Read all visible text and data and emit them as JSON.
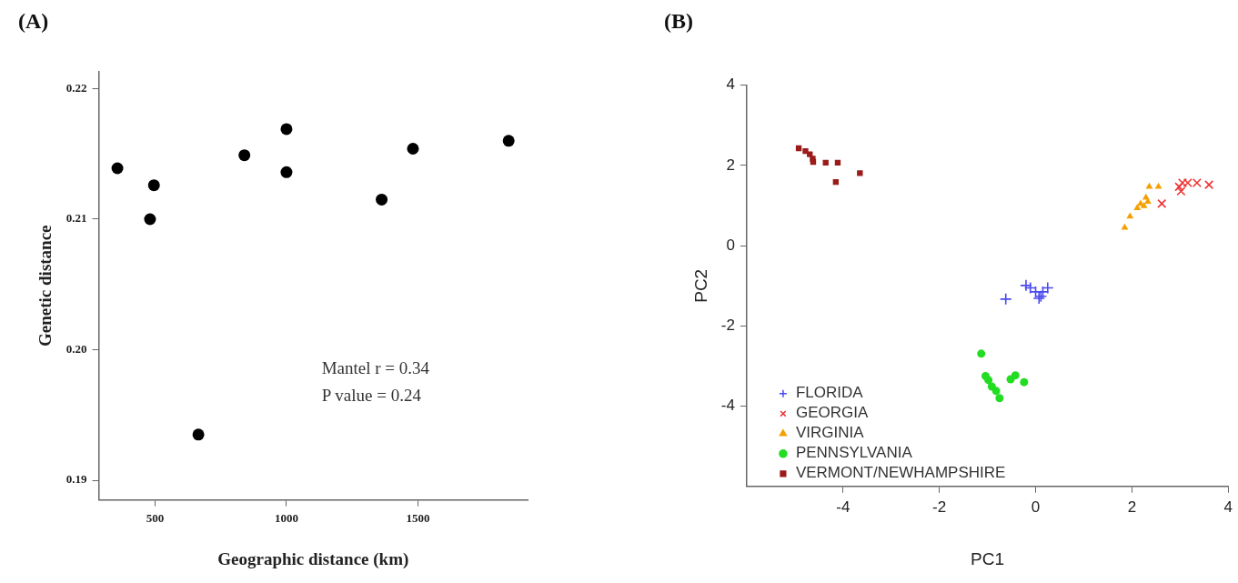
{
  "chart_data": [
    {
      "type": "scatter",
      "title": "(A)",
      "xlabel": "Geographic distance (km)",
      "ylabel": "Genetic distance",
      "x": [
        357,
        496,
        481,
        840,
        1000,
        1000,
        665,
        1362,
        1481,
        1845
      ],
      "values": [
        0.2139,
        0.2126,
        0.21,
        0.2149,
        0.2169,
        0.2136,
        0.1935,
        0.2115,
        0.2154,
        0.216
      ],
      "color": "#000000",
      "marker": "circle",
      "xlim": [
        286,
        1917
      ],
      "ylim": [
        0.1885,
        0.2213
      ],
      "xticks": [
        500,
        1000,
        1500
      ],
      "yticks": [
        0.19,
        {
          "value": 0.2,
          "label": "0.20"
        },
        0.21,
        0.22
      ],
      "annotations": [
        "Mantel r = 0.34",
        "P value = 0.24"
      ],
      "grid": false,
      "legend": false
    },
    {
      "type": "scatter",
      "title": "(B)",
      "xlabel": "PC1",
      "ylabel": "PC2",
      "series": [
        {
          "name": "FLORIDA",
          "color": "#4a4af0",
          "marker": "plus",
          "x": [
            -0.62,
            -0.2,
            -0.11,
            0,
            0.11,
            0.15,
            0.25,
            0.07
          ],
          "values": [
            -1.33,
            -0.99,
            -1.05,
            -1.15,
            -1.26,
            -1.15,
            -1.05,
            -1.31
          ]
        },
        {
          "name": "GEORGIA",
          "color": "#ee3333",
          "marker": "cross",
          "x": [
            2.62,
            2.98,
            3.05,
            3.16,
            3.35,
            3.6,
            3.02
          ],
          "values": [
            1.05,
            1.47,
            1.57,
            1.57,
            1.57,
            1.52,
            1.36
          ]
        },
        {
          "name": "VIRGINIA",
          "color": "#f5a000",
          "marker": "triangle",
          "x": [
            1.85,
            1.96,
            2.11,
            2.18,
            2.25,
            2.33,
            2.36,
            2.55,
            2.29
          ],
          "values": [
            0.45,
            0.73,
            0.94,
            1.05,
            0.99,
            1.1,
            1.47,
            1.47,
            1.2
          ]
        },
        {
          "name": "PENNSYLVANIA",
          "color": "#22dd22",
          "marker": "circle",
          "x": [
            -1.13,
            -1.04,
            -0.98,
            -0.91,
            -0.82,
            -0.75,
            -0.52,
            -0.42,
            -0.24
          ],
          "values": [
            -2.69,
            -3.25,
            -3.35,
            -3.51,
            -3.62,
            -3.8,
            -3.33,
            -3.23,
            -3.4
          ]
        },
        {
          "name": "VERMONT/NEWHAMPSHIRE",
          "color": "#9b1b1b",
          "marker": "square",
          "x": [
            -4.92,
            -4.78,
            -4.69,
            -4.63,
            -4.62,
            -4.36,
            -4.11,
            -4.15,
            -3.65
          ],
          "values": [
            2.43,
            2.36,
            2.28,
            2.17,
            2.09,
            2.07,
            2.07,
            1.59,
            1.81
          ]
        }
      ],
      "xlim": [
        -6,
        4
      ],
      "ylim": [
        -6,
        4
      ],
      "xticks": [
        -4,
        -2,
        0,
        2,
        4
      ],
      "yticks": [
        -4,
        -2,
        0,
        2,
        4
      ],
      "grid": false,
      "legend": "bottom left"
    }
  ]
}
